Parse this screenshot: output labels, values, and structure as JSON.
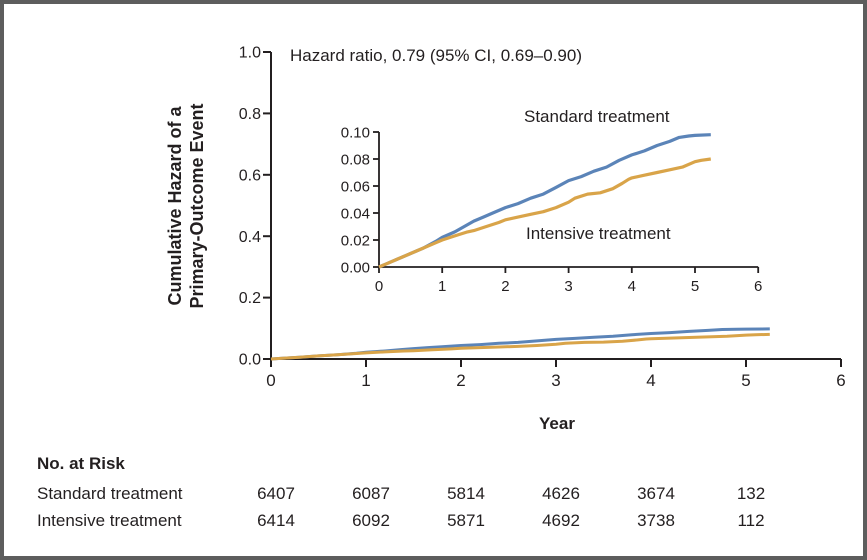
{
  "colors": {
    "standard_line": "#5b84b8",
    "intensive_line": "#d9a449",
    "axis_and_text": "#231f20",
    "frame_border": "#5d5d5d"
  },
  "chart_data": {
    "type": "line",
    "title": "",
    "annotation": "Hazard ratio, 0.79 (95% CI, 0.69–0.90)",
    "xlabel": "Year",
    "ylabel_line1": "Cumulative Hazard of a",
    "ylabel_line2": "Primary-Outcome Event",
    "legend_position": "inline-labels-on-inset",
    "grid": "off",
    "series": [
      {
        "name": "Standard treatment",
        "color": "#5b84b8",
        "points": [
          [
            0,
            0
          ],
          [
            0.1,
            0.002
          ],
          [
            0.3,
            0.006
          ],
          [
            0.5,
            0.01
          ],
          [
            0.7,
            0.014
          ],
          [
            0.9,
            0.019
          ],
          [
            1.0,
            0.022
          ],
          [
            1.1,
            0.024
          ],
          [
            1.2,
            0.026
          ],
          [
            1.35,
            0.03
          ],
          [
            1.5,
            0.034
          ],
          [
            1.65,
            0.037
          ],
          [
            1.8,
            0.04
          ],
          [
            2.0,
            0.044
          ],
          [
            2.2,
            0.047
          ],
          [
            2.4,
            0.051
          ],
          [
            2.6,
            0.054
          ],
          [
            2.8,
            0.059
          ],
          [
            3.0,
            0.064
          ],
          [
            3.2,
            0.067
          ],
          [
            3.4,
            0.071
          ],
          [
            3.6,
            0.074
          ],
          [
            3.8,
            0.079
          ],
          [
            4.0,
            0.083
          ],
          [
            4.2,
            0.086
          ],
          [
            4.4,
            0.09
          ],
          [
            4.6,
            0.093
          ],
          [
            4.75,
            0.096
          ],
          [
            4.9,
            0.097
          ],
          [
            5.0,
            0.0975
          ],
          [
            5.25,
            0.098
          ]
        ]
      },
      {
        "name": "Intensive treatment",
        "color": "#d9a449",
        "points": [
          [
            0,
            0
          ],
          [
            0.1,
            0.002
          ],
          [
            0.3,
            0.006
          ],
          [
            0.5,
            0.01
          ],
          [
            0.7,
            0.014
          ],
          [
            0.9,
            0.018
          ],
          [
            1.0,
            0.02
          ],
          [
            1.2,
            0.023
          ],
          [
            1.4,
            0.026
          ],
          [
            1.5,
            0.027
          ],
          [
            1.7,
            0.03
          ],
          [
            1.9,
            0.033
          ],
          [
            2.0,
            0.035
          ],
          [
            2.2,
            0.037
          ],
          [
            2.4,
            0.039
          ],
          [
            2.6,
            0.041
          ],
          [
            2.8,
            0.044
          ],
          [
            3.0,
            0.048
          ],
          [
            3.1,
            0.051
          ],
          [
            3.3,
            0.054
          ],
          [
            3.5,
            0.055
          ],
          [
            3.7,
            0.058
          ],
          [
            3.85,
            0.062
          ],
          [
            3.95,
            0.065
          ],
          [
            4.0,
            0.066
          ],
          [
            4.2,
            0.068
          ],
          [
            4.4,
            0.07
          ],
          [
            4.6,
            0.072
          ],
          [
            4.8,
            0.074
          ],
          [
            5.0,
            0.078
          ],
          [
            5.1,
            0.079
          ],
          [
            5.25,
            0.08
          ]
        ]
      }
    ],
    "main_axes": {
      "xlim": [
        0,
        6
      ],
      "ylim": [
        0,
        1.0
      ],
      "xtick_labels": [
        "0",
        "1",
        "2",
        "3",
        "4",
        "5",
        "6"
      ],
      "ytick_labels": [
        "0.0",
        "0.2",
        "0.4",
        "0.6",
        "0.8",
        "1.0"
      ]
    },
    "inset_axes": {
      "xlim": [
        0,
        6
      ],
      "ylim": [
        0,
        0.1
      ],
      "xtick_labels": [
        "0",
        "1",
        "2",
        "3",
        "4",
        "5",
        "6"
      ],
      "ytick_labels": [
        "0.00",
        "0.02",
        "0.04",
        "0.06",
        "0.08",
        "0.10"
      ]
    }
  },
  "risk_table": {
    "title": "No. at Risk",
    "rows": [
      {
        "label": "Standard treatment",
        "counts": [
          "6407",
          "6087",
          "5814",
          "4626",
          "3674",
          "132"
        ]
      },
      {
        "label": "Intensive treatment",
        "counts": [
          "6414",
          "6092",
          "5871",
          "4692",
          "3738",
          "112"
        ]
      }
    ]
  }
}
